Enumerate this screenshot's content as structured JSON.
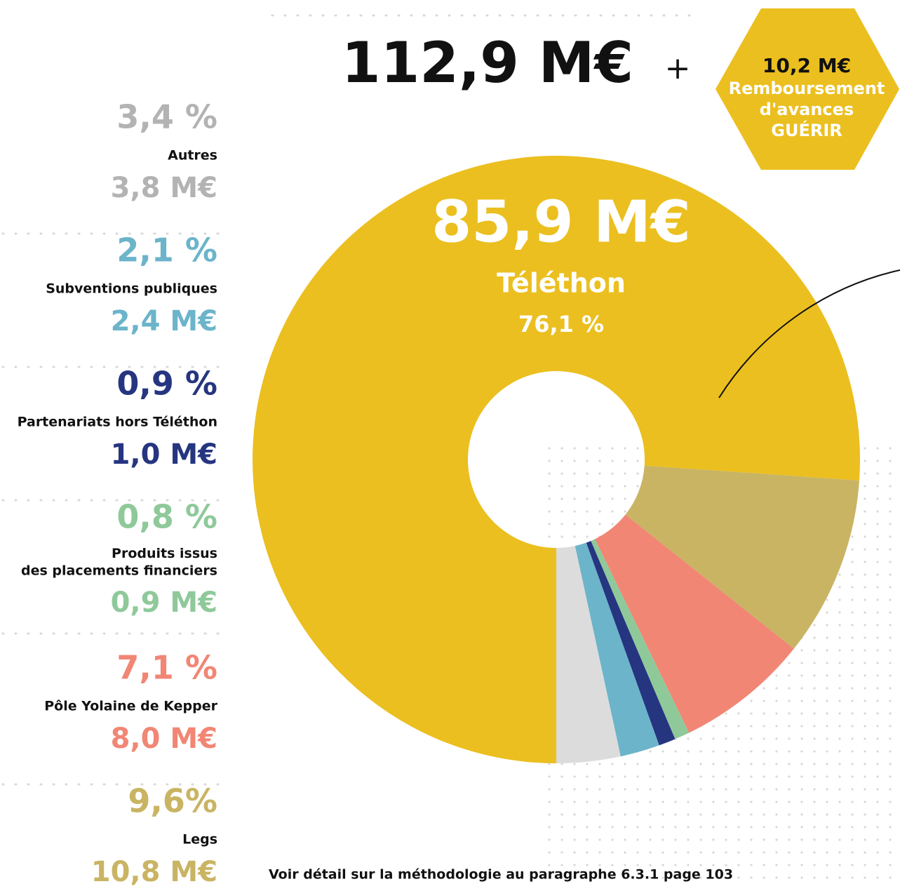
{
  "chart_data": {
    "type": "donut",
    "title": "112,9 M€",
    "plus": "+",
    "hexagon": {
      "amount": "10,2 M€",
      "lines": [
        "Remboursement",
        "d'avances",
        "GUÉRIR"
      ]
    },
    "categories": [
      "Téléthon",
      "Legs",
      "Pôle Yolaine de Kepper",
      "Produits issus\ndes placements financiers",
      "Partenariats hors Téléthon",
      "Subventions publiques",
      "Autres"
    ],
    "values": [
      76.1,
      9.6,
      7.1,
      0.8,
      0.9,
      2.1,
      3.4
    ],
    "value_labels": [
      "76,1 %",
      "9,6%",
      "7,1 %",
      "0,8 %",
      "0,9 %",
      "2,1 %",
      "3,4 %"
    ],
    "amount_labels": [
      "85,9 M€",
      "10,8 M€",
      "8,0 M€",
      "0,9 M€",
      "1,0 M€",
      "2,4 M€",
      "3,8 M€"
    ],
    "colors": [
      "#ebbf1f",
      "#c9b463",
      "#f18675",
      "#8fc99a",
      "#263580",
      "#6cb4ca",
      "#dcdcdc"
    ],
    "text_colors": [
      "#ffffff",
      "#c9b463",
      "#f18675",
      "#8fc99a",
      "#263580",
      "#6cb4ca",
      "#b3b3b3"
    ],
    "footnote": "Voir détail sur la méthodologie au paragraphe 6.3.1 page 103"
  }
}
